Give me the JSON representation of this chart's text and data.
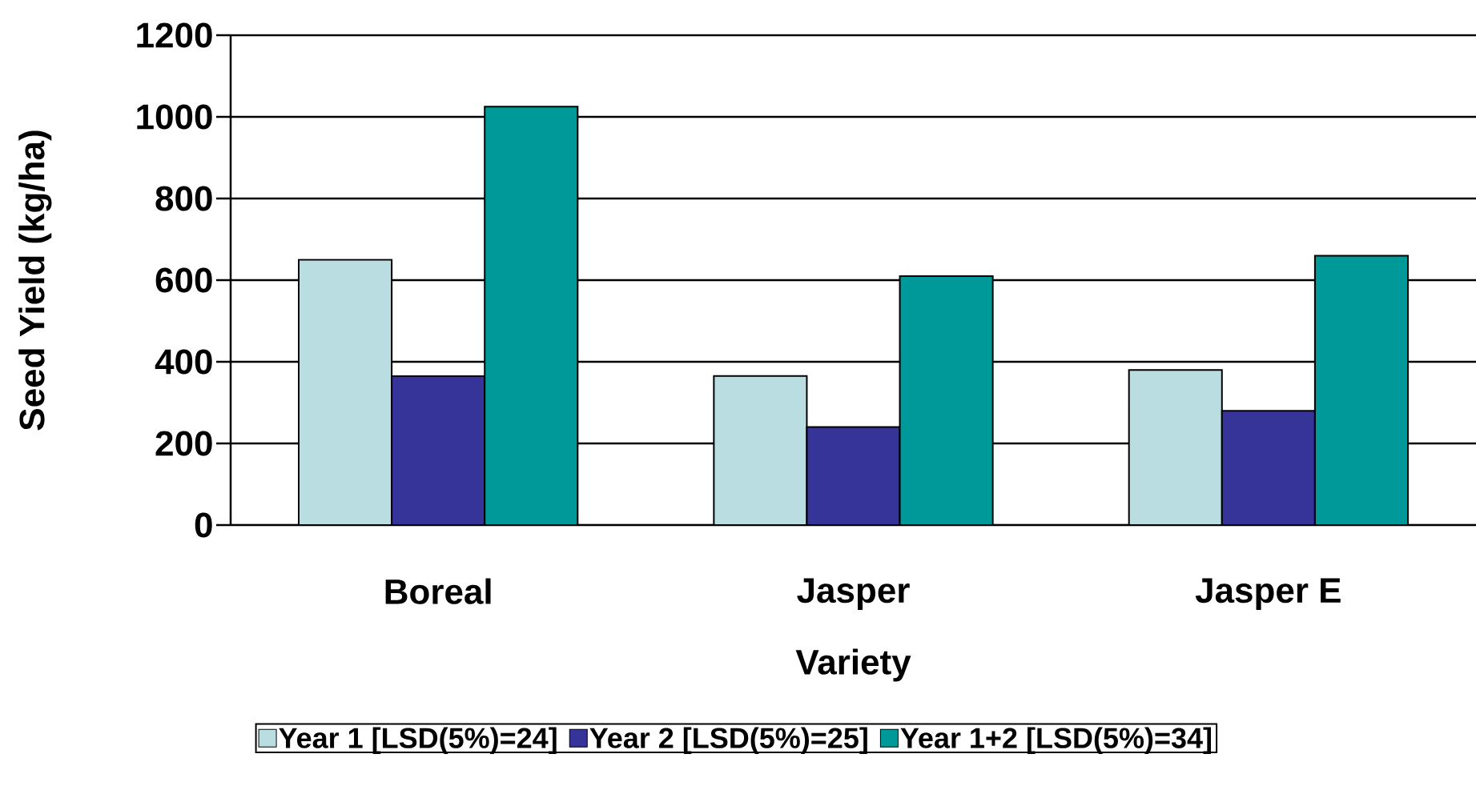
{
  "chart_data": {
    "type": "bar",
    "xlabel": "Variety",
    "ylabel": "Seed Yield (kg/ha)",
    "categories": [
      "Boreal",
      "Jasper",
      "Jasper E"
    ],
    "series": [
      {
        "name": "Year 1 [LSD(5%)=24]",
        "color": "#b9dde1",
        "values": [
          650,
          365,
          380
        ]
      },
      {
        "name": "Year 2 [LSD(5%)=25]",
        "color": "#363399",
        "values": [
          365,
          240,
          280
        ]
      },
      {
        "name": "Year 1+2 [LSD(5%)=34]",
        "color": "#009999",
        "values": [
          1025,
          610,
          660
        ]
      }
    ],
    "ylim": [
      0,
      1200
    ],
    "yticks": [
      0,
      200,
      400,
      600,
      800,
      1000,
      1200
    ],
    "grid": "y",
    "legend": "bottom"
  }
}
